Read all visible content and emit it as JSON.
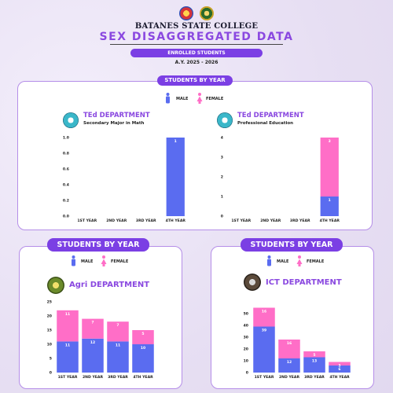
{
  "header": {
    "college": "BATANES STATE COLLEGE",
    "title": "SEX DISAGGREGATED DATA",
    "subtitle_pill": "ENROLLED STUDENTS",
    "academic_year": "A.Y. 2025 - 2026"
  },
  "sections": {
    "top_pill": "STUDENTS BY YEAR",
    "left_pill": "STUDENTS BY YEAR",
    "right_pill": "STUDENTS BY YEAR"
  },
  "legend": {
    "male": "MALE",
    "female": "FEMALE",
    "male_color": "#5a6cf0",
    "female_color": "#ff6ec7"
  },
  "colors": {
    "accent": "#7b3fe4",
    "title": "#8a48e0",
    "card_border": "#b58ee8"
  },
  "chart_data": [
    {
      "type": "bar",
      "title": "TEd DEPARTMENT",
      "subtitle": "Secondary Major in Math",
      "stacked": true,
      "categories": [
        "1ST YEAR",
        "2ND YEAR",
        "3RD YEAR",
        "4TH YEAR"
      ],
      "series": [
        {
          "name": "MALE",
          "values": [
            0,
            0,
            0,
            1
          ]
        },
        {
          "name": "FEMALE",
          "values": [
            0,
            0,
            0,
            0
          ]
        }
      ],
      "ylim": [
        0,
        1
      ],
      "yticks": [
        "0.0",
        "0.2",
        "0.4",
        "0.6",
        "0.8",
        "1.0"
      ],
      "yticks_values": [
        0,
        0.2,
        0.4,
        0.6,
        0.8,
        1.0
      ],
      "icon": "ted-department-logo"
    },
    {
      "type": "bar",
      "title": "TEd DEPARTMENT",
      "subtitle": "Professional Education",
      "stacked": true,
      "categories": [
        "1ST YEAR",
        "2ND YEAR",
        "3RD YEAR",
        "4TH YEAR"
      ],
      "series": [
        {
          "name": "MALE",
          "values": [
            0,
            0,
            0,
            1
          ]
        },
        {
          "name": "FEMALE",
          "values": [
            0,
            0,
            0,
            3
          ]
        }
      ],
      "ylim": [
        0,
        4
      ],
      "yticks": [
        "0",
        "1",
        "2",
        "3",
        "4"
      ],
      "yticks_values": [
        0,
        1,
        2,
        3,
        4
      ],
      "icon": "ted-department-logo"
    },
    {
      "type": "bar",
      "title": "Agri DEPARTMENT",
      "subtitle": "",
      "stacked": true,
      "categories": [
        "1ST YEAR",
        "2ND YEAR",
        "3RD YEAR",
        "4TH YEAR"
      ],
      "series": [
        {
          "name": "MALE",
          "values": [
            11,
            12,
            11,
            10
          ]
        },
        {
          "name": "FEMALE",
          "values": [
            11,
            7,
            7,
            5
          ]
        }
      ],
      "ylim": [
        0,
        25
      ],
      "yticks": [
        "0",
        "5",
        "10",
        "15",
        "20",
        "25"
      ],
      "yticks_values": [
        0,
        5,
        10,
        15,
        20,
        25
      ],
      "icon": "agri-department-logo"
    },
    {
      "type": "bar",
      "title": "ICT DEPARTMENT",
      "subtitle": "",
      "stacked": true,
      "categories": [
        "1ST YEAR",
        "2ND YEAR",
        "3RD YEAR",
        "4TH YEAR"
      ],
      "series": [
        {
          "name": "MALE",
          "values": [
            39,
            12,
            13,
            6
          ]
        },
        {
          "name": "FEMALE",
          "values": [
            16,
            16,
            5,
            3
          ]
        }
      ],
      "ylim": [
        0,
        60
      ],
      "yticks": [
        "0",
        "10",
        "20",
        "30",
        "40",
        "50"
      ],
      "yticks_values": [
        0,
        10,
        20,
        30,
        40,
        50
      ],
      "icon": "ict-department-logo"
    }
  ]
}
